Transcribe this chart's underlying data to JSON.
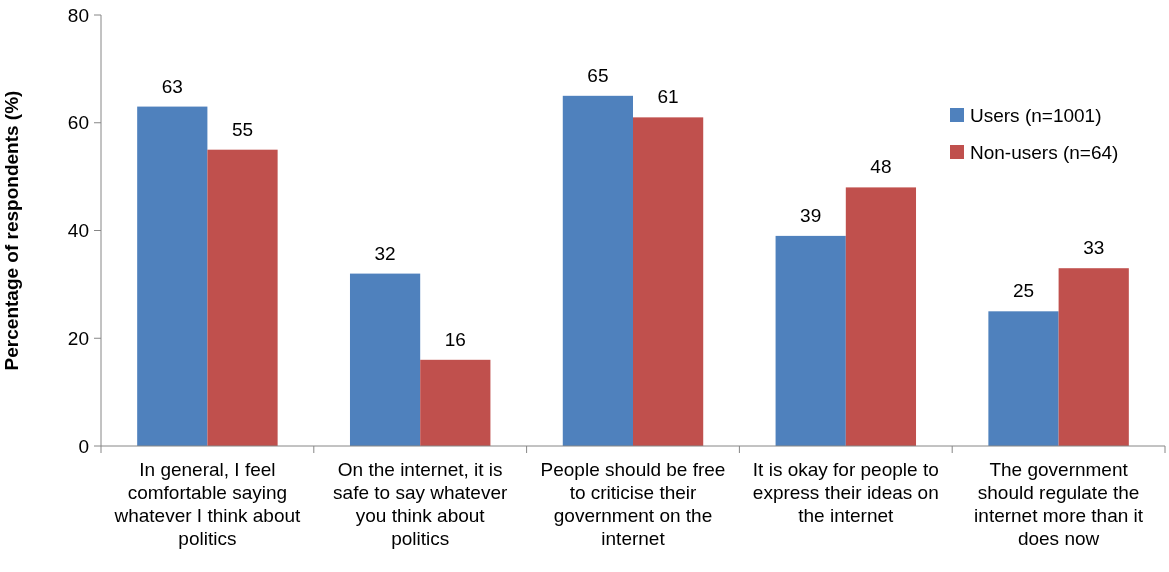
{
  "chart_data": {
    "type": "bar",
    "ylabel": "Percentage of respondents (%)",
    "categories": [
      "In general, I feel comfortable saying whatever I think about politics",
      "On the internet, it is safe to say whatever you think about politics",
      "People should be free to criticise their government on the internet",
      "It is okay for people to express their ideas on the internet",
      "The government should regulate the internet more than it does now"
    ],
    "series": [
      {
        "name": "Users (n=1001)",
        "color": "#4f81bd",
        "values": [
          63,
          32,
          65,
          39,
          25
        ]
      },
      {
        "name": "Non-users (n=64)",
        "color": "#c0504d",
        "values": [
          55,
          16,
          61,
          48,
          33
        ]
      }
    ],
    "ylim": [
      0,
      80
    ],
    "yticks": [
      0,
      20,
      40,
      60,
      80
    ],
    "grid": false,
    "legend": "right",
    "data_labels": true
  }
}
